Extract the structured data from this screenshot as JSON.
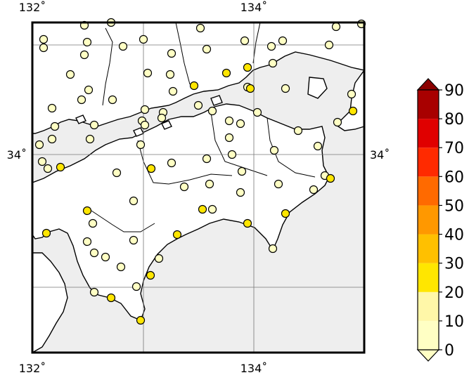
{
  "map": {
    "axes": {
      "lon_ticks": [
        {
          "value": 132,
          "label": "132˚"
        },
        {
          "value": 134,
          "label": "134˚"
        }
      ],
      "lat_ticks": [
        {
          "value": 34,
          "label": "34˚"
        }
      ]
    },
    "colors": {
      "sea": "#eeeeee",
      "land": "#ffffff",
      "coast": "#000000",
      "frame": "#000000"
    }
  },
  "colorbar": {
    "labels": [
      "0",
      "10",
      "20",
      "30",
      "40",
      "50",
      "60",
      "70",
      "80",
      "90"
    ],
    "segments": [
      "#ffffc4",
      "#fff7a8",
      "#ffe600",
      "#ffc000",
      "#ff9800",
      "#ff6a00",
      "#ff2a00",
      "#e00000",
      "#a80000"
    ],
    "lower_triangle_color": "#ffffc4",
    "upper_triangle_color": "#8b0000"
  },
  "stations": {
    "value_note_colors": {
      "low": "#ffffc4",
      "mid": "#ffe600"
    }
  }
}
